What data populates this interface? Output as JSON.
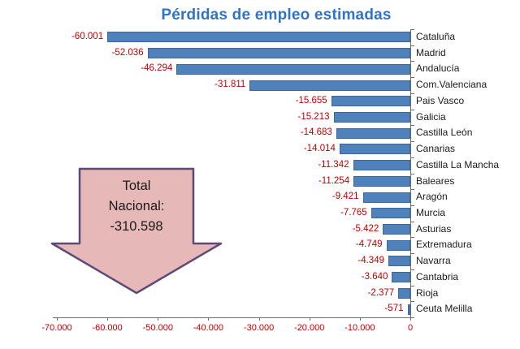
{
  "chart_data": {
    "type": "bar",
    "orientation": "horizontal",
    "title": "Pérdidas de empleo estimadas",
    "categories": [
      "Cataluña",
      "Madrid",
      "Andalucía",
      "Com.Valenciana",
      "Pais Vasco",
      "Galicia",
      "Castilla León",
      "Canarias",
      "Castilla La Mancha",
      "Baleares",
      "Aragón",
      "Murcia",
      "Asturias",
      "Extremadura",
      "Navarra",
      "Cantabria",
      "Rioja",
      "Ceuta Melilla"
    ],
    "values": [
      -60001,
      -52036,
      -46294,
      -31811,
      -15655,
      -15213,
      -14683,
      -14014,
      -11342,
      -11254,
      -9421,
      -7765,
      -5422,
      -4749,
      -4349,
      -3640,
      -2377,
      -571
    ],
    "value_labels": [
      "-60.001",
      "-52.036",
      "-46.294",
      "-31.811",
      "-15.655",
      "-15.213",
      "-14.683",
      "-14.014",
      "-11.342",
      "-11.254",
      "-9.421",
      "-7.765",
      "-5.422",
      "-4.749",
      "-4.349",
      "-3.640",
      "-2.377",
      "-571"
    ],
    "xlim": [
      -70000,
      0
    ],
    "x_tick_labels": [
      "-70.000",
      "-60.000",
      "-50.000",
      "-40.000",
      "-30.000",
      "-20.000",
      "-10.000",
      "0"
    ],
    "legend": "none",
    "grid": false
  },
  "annotation": {
    "lines": [
      "Total",
      "Nacional:",
      "-310.598"
    ]
  },
  "colors": {
    "bar": "#4f81bd",
    "bar_border": "#3a689c",
    "value_label": "#c00000",
    "tick_label": "#c00000",
    "category_label": "#1a1a1a",
    "title": "#2e75c8",
    "axis": "#6e6e6e",
    "arrow_fill": "#e6b9b8",
    "arrow_stroke": "#5f497a"
  }
}
